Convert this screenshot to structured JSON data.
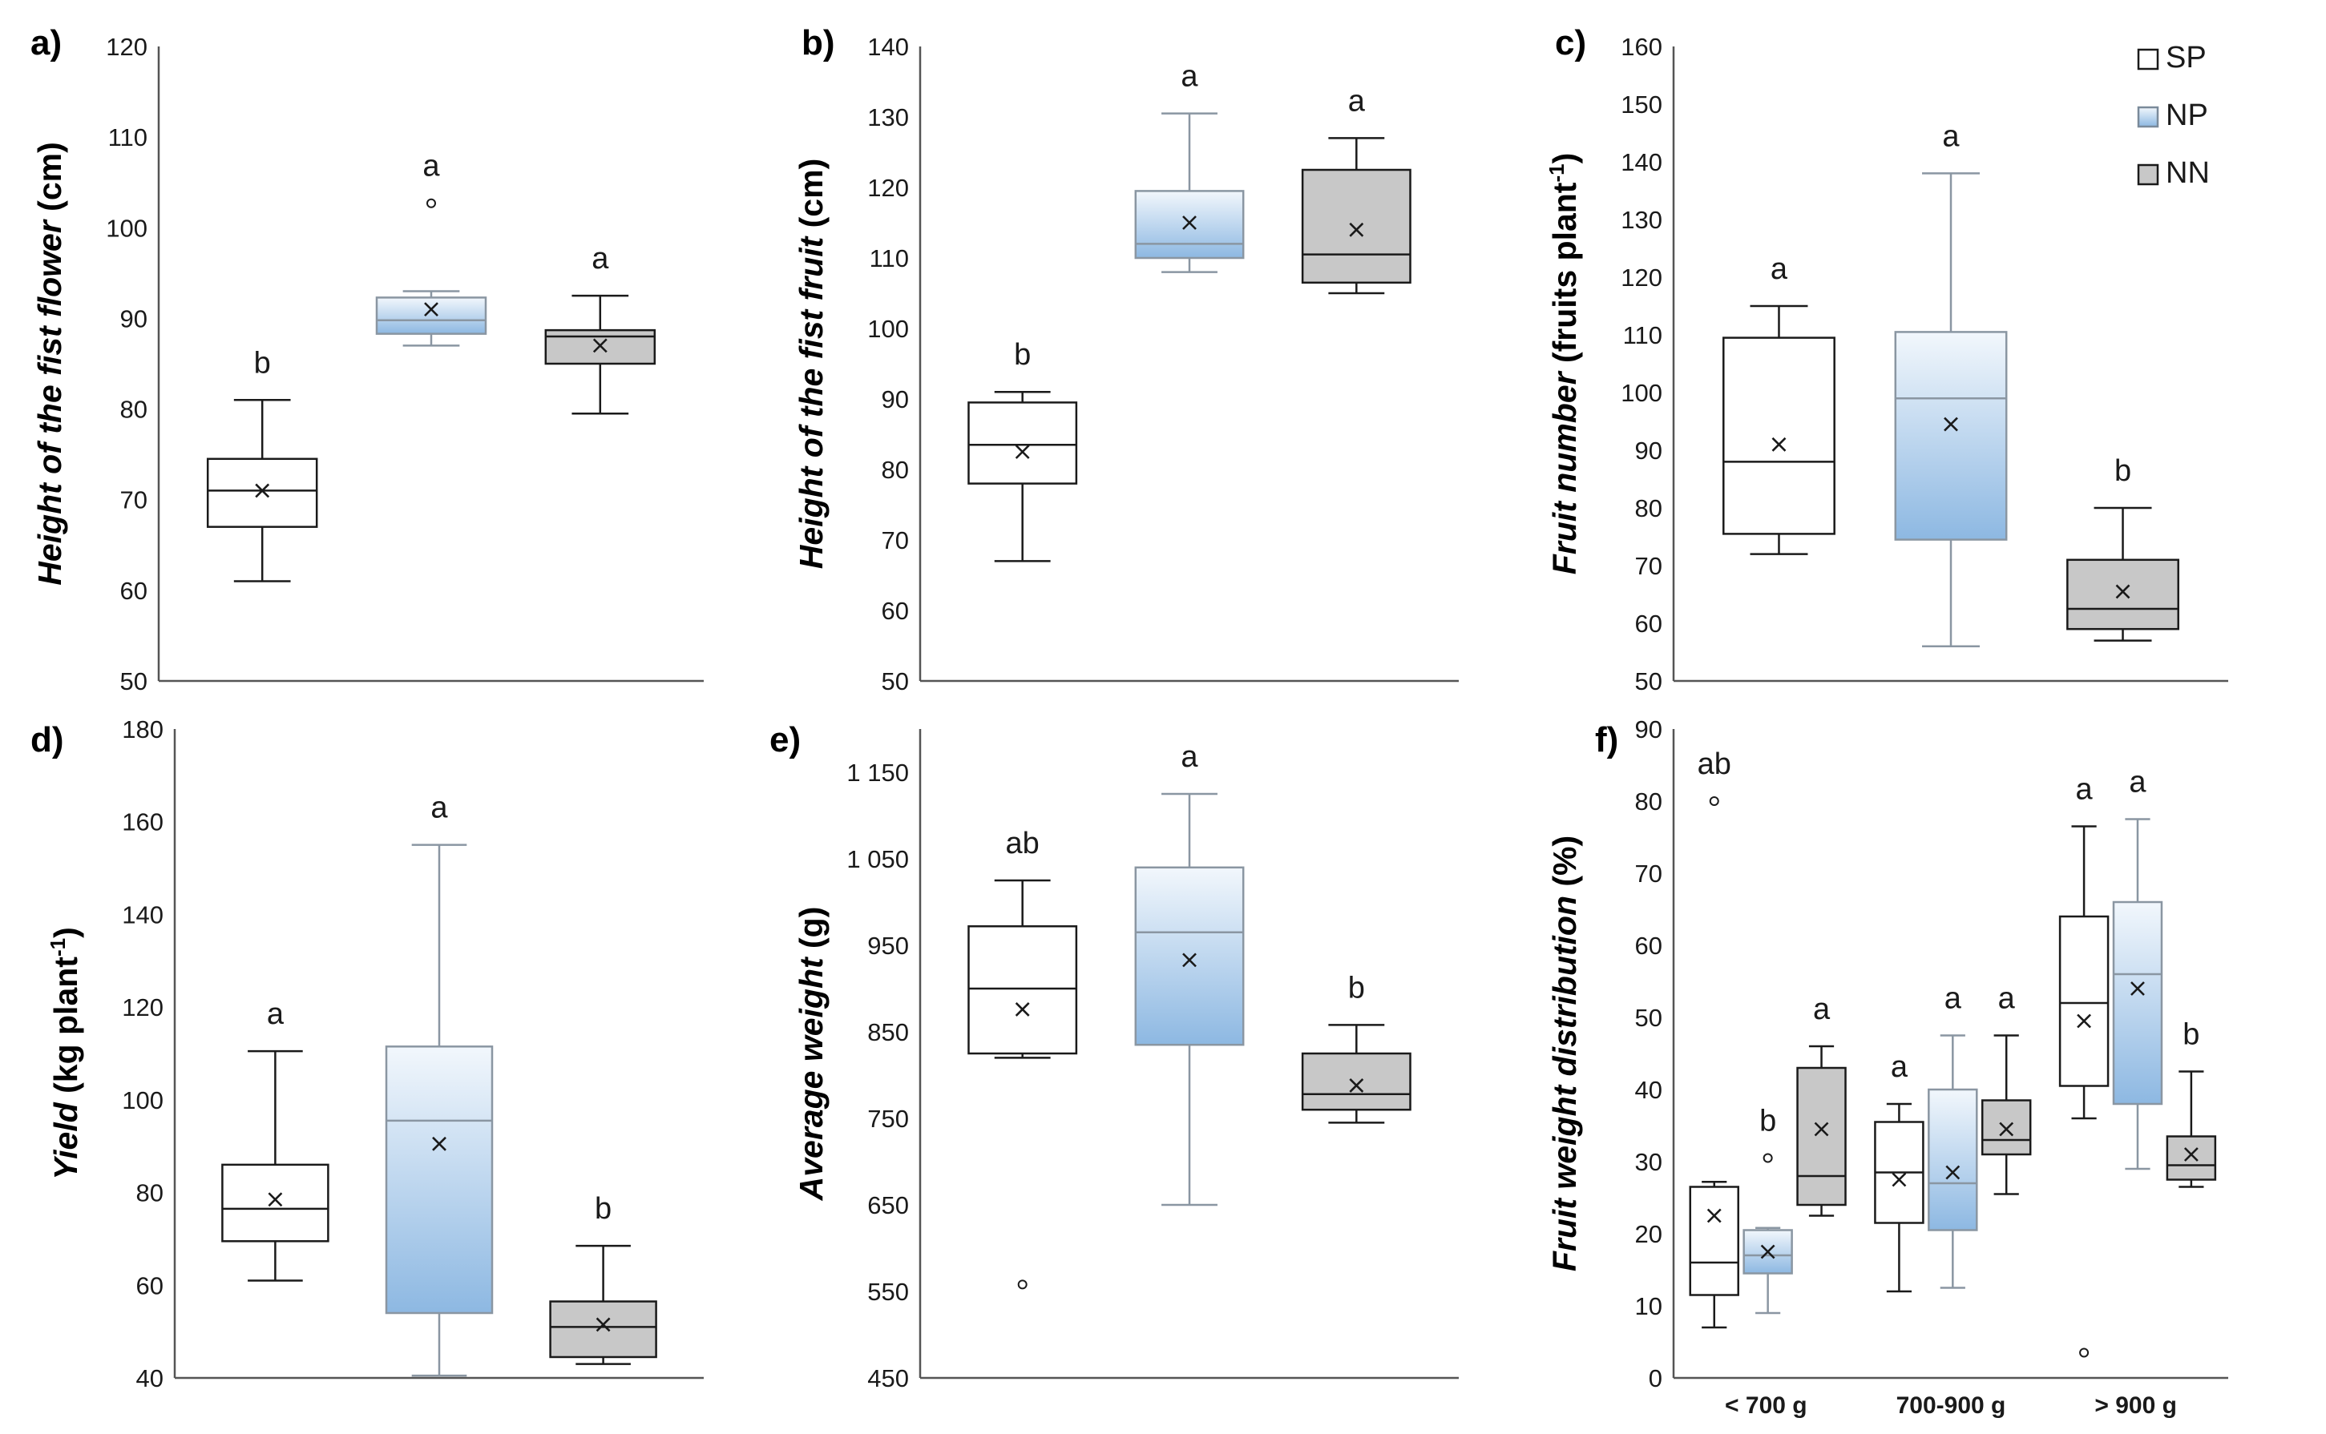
{
  "legend": [
    {
      "key": "SP",
      "label": "SP",
      "fill": "#ffffff",
      "stroke": "#1a1a1a"
    },
    {
      "key": "NP",
      "label": "NP",
      "fill": "gradNP",
      "stroke": "#7a8a9a"
    },
    {
      "key": "NN",
      "label": "NN",
      "fill": "#c8c8c8",
      "stroke": "#1a1a1a"
    }
  ],
  "colors": {
    "sp_fill": "#ffffff",
    "np_top": "#f2f7fc",
    "np_bottom": "#8db8e2",
    "nn_fill": "#c8c8c8",
    "axis": "#555555",
    "np_stroke": "#8a96a2"
  },
  "chart_data": [
    {
      "panel": "a)",
      "type": "box",
      "ylabel_parts": [
        {
          "t": "Height of the fist flower",
          "it": true
        },
        {
          "t": " (cm)",
          "it": false
        }
      ],
      "ylim": [
        50,
        120
      ],
      "yticks": [
        50,
        60,
        70,
        80,
        90,
        100,
        110,
        120
      ],
      "categories": [
        ""
      ],
      "boxes": [
        {
          "group": "SP",
          "cat": 0,
          "min": 61,
          "q1": 67,
          "median": 71,
          "q3": 74.5,
          "max": 81,
          "mean": 71,
          "outliers": [],
          "letter": "b"
        },
        {
          "group": "NP",
          "cat": 0,
          "min": 87,
          "q1": 88.3,
          "median": 89.8,
          "q3": 92.3,
          "max": 93,
          "mean": 91,
          "outliers": [
            102.7
          ],
          "letter": "a"
        },
        {
          "group": "NN",
          "cat": 0,
          "min": 79.5,
          "q1": 85,
          "median": 88,
          "q3": 88.7,
          "max": 92.5,
          "mean": 87,
          "outliers": [],
          "letter": "a"
        }
      ]
    },
    {
      "panel": "b)",
      "type": "box",
      "ylabel_parts": [
        {
          "t": "Height of the fist fruit",
          "it": true
        },
        {
          "t": " (cm)",
          "it": false
        }
      ],
      "ylim": [
        50,
        140
      ],
      "yticks": [
        50,
        60,
        70,
        80,
        90,
        100,
        110,
        120,
        130,
        140
      ],
      "categories": [
        ""
      ],
      "boxes": [
        {
          "group": "SP",
          "cat": 0,
          "min": 67,
          "q1": 78,
          "median": 83.5,
          "q3": 89.5,
          "max": 91,
          "mean": 82.5,
          "outliers": [],
          "letter": "b"
        },
        {
          "group": "NP",
          "cat": 0,
          "min": 108,
          "q1": 110,
          "median": 112,
          "q3": 119.5,
          "max": 130.5,
          "mean": 115,
          "outliers": [],
          "letter": "a"
        },
        {
          "group": "NN",
          "cat": 0,
          "min": 105,
          "q1": 106.5,
          "median": 110.5,
          "q3": 122.5,
          "max": 127,
          "mean": 114,
          "outliers": [],
          "letter": "a"
        }
      ]
    },
    {
      "panel": "c)",
      "type": "box",
      "ylabel_parts": [
        {
          "t": "Fruit number",
          "it": true
        },
        {
          "t": " (fruits plant",
          "it": false
        },
        {
          "t": "-1",
          "sup": true
        },
        {
          "t": ")",
          "it": false
        }
      ],
      "ylim": [
        50,
        160
      ],
      "yticks": [
        50,
        60,
        70,
        80,
        90,
        100,
        110,
        120,
        130,
        140,
        150,
        160
      ],
      "categories": [
        ""
      ],
      "legend": true,
      "boxes": [
        {
          "group": "SP",
          "cat": 0,
          "min": 72,
          "q1": 75.5,
          "median": 88,
          "q3": 109.5,
          "max": 115,
          "mean": 91,
          "outliers": [],
          "letter": "a"
        },
        {
          "group": "NP",
          "cat": 0,
          "min": 56,
          "q1": 74.5,
          "median": 99,
          "q3": 110.5,
          "max": 138,
          "mean": 94.5,
          "outliers": [],
          "letter": "a"
        },
        {
          "group": "NN",
          "cat": 0,
          "min": 57,
          "q1": 59,
          "median": 62.5,
          "q3": 71,
          "max": 80,
          "mean": 65.5,
          "outliers": [],
          "letter": "b"
        }
      ]
    },
    {
      "panel": "d)",
      "type": "box",
      "ylabel_parts": [
        {
          "t": "Yield",
          "it": true
        },
        {
          "t": " (kg plant",
          "it": false
        },
        {
          "t": "-1",
          "sup": true
        },
        {
          "t": ")",
          "it": false
        }
      ],
      "ylim": [
        40,
        180
      ],
      "yticks": [
        40,
        60,
        80,
        100,
        120,
        140,
        160,
        180
      ],
      "categories": [
        ""
      ],
      "boxes": [
        {
          "group": "SP",
          "cat": 0,
          "min": 61,
          "q1": 69.5,
          "median": 76.5,
          "q3": 86,
          "max": 110.5,
          "mean": 78.5,
          "outliers": [],
          "letter": "a"
        },
        {
          "group": "NP",
          "cat": 0,
          "min": 40.5,
          "q1": 54,
          "median": 95.5,
          "q3": 111.5,
          "max": 155,
          "mean": 90.5,
          "outliers": [],
          "letter": "a"
        },
        {
          "group": "NN",
          "cat": 0,
          "min": 43,
          "q1": 44.5,
          "median": 51,
          "q3": 56.5,
          "max": 68.5,
          "mean": 51.5,
          "outliers": [],
          "letter": "b"
        }
      ]
    },
    {
      "panel": "e)",
      "type": "box",
      "ylabel_parts": [
        {
          "t": "Average weight",
          "it": true
        },
        {
          "t": " (g)",
          "it": false
        }
      ],
      "ylim": [
        450,
        1200
      ],
      "yticks": [
        450,
        550,
        650,
        750,
        850,
        950,
        1050,
        1150
      ],
      "ytick_labels": [
        "450",
        "550",
        "650",
        "750",
        "850",
        "950",
        "1 050",
        "1 150"
      ],
      "categories": [
        ""
      ],
      "boxes": [
        {
          "group": "SP",
          "cat": 0,
          "min": 820,
          "q1": 825,
          "median": 900,
          "q3": 972,
          "max": 1025,
          "mean": 876,
          "outliers": [
            558
          ],
          "letter": "ab"
        },
        {
          "group": "NP",
          "cat": 0,
          "min": 650,
          "q1": 835,
          "median": 965,
          "q3": 1040,
          "max": 1125,
          "mean": 933,
          "outliers": [],
          "letter": "a"
        },
        {
          "group": "NN",
          "cat": 0,
          "min": 745,
          "q1": 760,
          "median": 778,
          "q3": 825,
          "max": 858,
          "mean": 788,
          "outliers": [],
          "letter": "b"
        }
      ]
    },
    {
      "panel": "f)",
      "type": "box",
      "ylabel_parts": [
        {
          "t": "Fruit weight distribution",
          "it": true
        },
        {
          "t": " (%)",
          "it": false
        }
      ],
      "ylim": [
        0,
        90
      ],
      "yticks": [
        0,
        10,
        20,
        30,
        40,
        50,
        60,
        70,
        80,
        90
      ],
      "categories": [
        "< 700 g",
        "700-900 g",
        "> 900 g"
      ],
      "boxes": [
        {
          "group": "SP",
          "cat": 0,
          "min": 7,
          "q1": 11.5,
          "median": 16,
          "q3": 26.5,
          "max": 27.2,
          "mean": 22.5,
          "outliers": [
            80
          ],
          "letter": "ab"
        },
        {
          "group": "NP",
          "cat": 0,
          "min": 9,
          "q1": 14.5,
          "median": 17,
          "q3": 20.5,
          "max": 20.8,
          "mean": 17.5,
          "outliers": [
            30.5
          ],
          "letter": "b"
        },
        {
          "group": "NN",
          "cat": 0,
          "min": 22.5,
          "q1": 24,
          "median": 28,
          "q3": 43,
          "max": 46,
          "mean": 34.5,
          "outliers": [],
          "letter": "a"
        },
        {
          "group": "SP",
          "cat": 1,
          "min": 12,
          "q1": 21.5,
          "median": 28.5,
          "q3": 35.5,
          "max": 38,
          "mean": 27.5,
          "outliers": [],
          "letter": "a"
        },
        {
          "group": "NP",
          "cat": 1,
          "min": 12.5,
          "q1": 20.5,
          "median": 27,
          "q3": 40,
          "max": 47.5,
          "mean": 28.5,
          "outliers": [],
          "letter": "a"
        },
        {
          "group": "NN",
          "cat": 1,
          "min": 25.5,
          "q1": 31,
          "median": 33,
          "q3": 38.5,
          "max": 47.5,
          "mean": 34.5,
          "outliers": [],
          "letter": "a"
        },
        {
          "group": "SP",
          "cat": 2,
          "min": 36,
          "q1": 40.5,
          "median": 52,
          "q3": 64,
          "max": 76.5,
          "mean": 49.5,
          "outliers": [
            3.5
          ],
          "letter": "a"
        },
        {
          "group": "NP",
          "cat": 2,
          "min": 29,
          "q1": 38,
          "median": 56,
          "q3": 66,
          "max": 77.5,
          "mean": 54,
          "outliers": [],
          "letter": "a"
        },
        {
          "group": "NN",
          "cat": 2,
          "min": 26.5,
          "q1": 27.5,
          "median": 29.5,
          "q3": 33.5,
          "max": 42.5,
          "mean": 31,
          "outliers": [],
          "letter": "b"
        }
      ]
    }
  ]
}
